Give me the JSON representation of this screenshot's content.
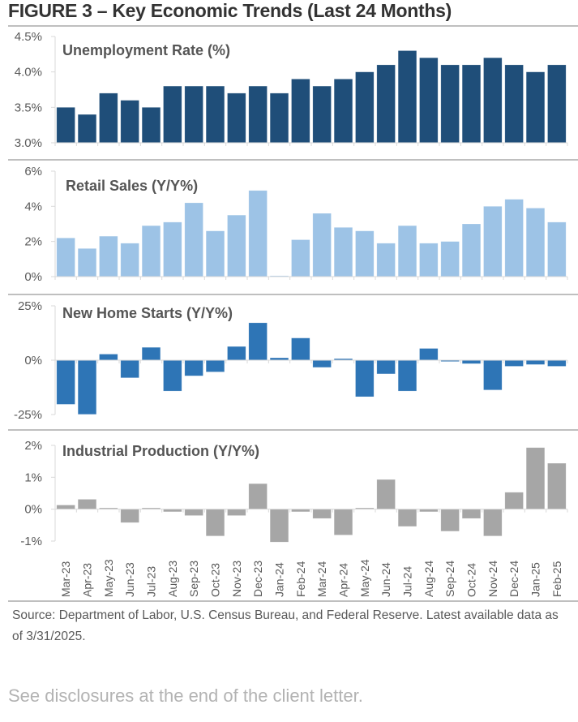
{
  "figure_title": "FIGURE 3 – Key Economic Trends (Last 24 Months)",
  "source_text": "Source: Department of Labor, U.S. Census Bureau, and Federal Reserve. Latest available data as of 3/31/2025.",
  "disclosure_text": "See disclosures at the end of the client letter.",
  "chart_data": [
    {
      "type": "bar",
      "title": "Unemployment Rate (%)",
      "color": "#1f4e79",
      "categories": [
        "Mar-23",
        "Apr-23",
        "May-23",
        "Jun-23",
        "Jul-23",
        "Aug-23",
        "Sep-23",
        "Oct-23",
        "Nov-23",
        "Dec-23",
        "Jan-24",
        "Feb-24",
        "Mar-24",
        "Apr-24",
        "May-24",
        "Jun-24",
        "Jul-24",
        "Aug-24",
        "Sep-24",
        "Oct-24",
        "Nov-24",
        "Dec-24",
        "Jan-25",
        "Feb-25"
      ],
      "values": [
        3.5,
        3.4,
        3.7,
        3.6,
        3.5,
        3.8,
        3.8,
        3.8,
        3.7,
        3.8,
        3.7,
        3.9,
        3.8,
        3.9,
        4.0,
        4.1,
        4.3,
        4.2,
        4.1,
        4.1,
        4.2,
        4.1,
        4.0,
        4.1
      ],
      "ylim": [
        3.0,
        4.5
      ],
      "baseline": 3.0,
      "yticks": [
        4.5,
        4.0,
        3.5,
        3.0
      ],
      "ytick_labels": [
        "4.5%",
        "4.0%",
        "3.5%",
        "3.0%"
      ],
      "xlabel": "",
      "ylabel": ""
    },
    {
      "type": "bar",
      "title": "Retail Sales (Y/Y%)",
      "color": "#9dc3e6",
      "categories": [
        "Mar-23",
        "Apr-23",
        "May-23",
        "Jun-23",
        "Jul-23",
        "Aug-23",
        "Sep-23",
        "Oct-23",
        "Nov-23",
        "Dec-23",
        "Jan-24",
        "Feb-24",
        "Mar-24",
        "Apr-24",
        "May-24",
        "Jun-24",
        "Jul-24",
        "Aug-24",
        "Sep-24",
        "Oct-24",
        "Nov-24",
        "Dec-24",
        "Jan-25",
        "Feb-25"
      ],
      "values": [
        2.2,
        1.6,
        2.3,
        1.9,
        2.9,
        3.1,
        4.2,
        2.6,
        3.5,
        4.9,
        0.05,
        2.1,
        3.6,
        2.8,
        2.6,
        1.9,
        2.9,
        1.9,
        2.0,
        3.0,
        4.0,
        4.4,
        3.9,
        3.1
      ],
      "ylim": [
        0,
        6
      ],
      "baseline": 0,
      "yticks": [
        6,
        4,
        2,
        0
      ],
      "ytick_labels": [
        "6%",
        "4%",
        "2%",
        "0%"
      ],
      "xlabel": "",
      "ylabel": ""
    },
    {
      "type": "bar",
      "title": "New Home Starts (Y/Y%)",
      "color": "#2e75b6",
      "categories": [
        "Mar-23",
        "Apr-23",
        "May-23",
        "Jun-23",
        "Jul-23",
        "Aug-23",
        "Sep-23",
        "Oct-23",
        "Nov-23",
        "Dec-23",
        "Jan-24",
        "Feb-24",
        "Mar-24",
        "Apr-24",
        "May-24",
        "Jun-24",
        "Jul-24",
        "Aug-24",
        "Sep-24",
        "Oct-24",
        "Nov-24",
        "Dec-24",
        "Jan-25",
        "Feb-25"
      ],
      "values": [
        -20.3,
        -24.9,
        2.8,
        -8.1,
        5.9,
        -14.2,
        -7.2,
        -5.4,
        6.3,
        17.2,
        1.1,
        10.2,
        -3.3,
        0.7,
        -16.8,
        -6.3,
        -14.2,
        5.4,
        -0.6,
        -1.6,
        -13.7,
        -2.8,
        -2.0,
        -2.8
      ],
      "ylim": [
        -25,
        25
      ],
      "baseline": 0,
      "yticks": [
        25,
        0,
        -25
      ],
      "ytick_labels": [
        "25%",
        "0%",
        "-25%"
      ],
      "xlabel": "",
      "ylabel": ""
    },
    {
      "type": "bar",
      "title": "Industrial Production (Y/Y%)",
      "color": "#a6a6a6",
      "categories": [
        "Mar-23",
        "Apr-23",
        "May-23",
        "Jun-23",
        "Jul-23",
        "Aug-23",
        "Sep-23",
        "Oct-23",
        "Nov-23",
        "Dec-23",
        "Jan-24",
        "Feb-24",
        "Mar-24",
        "Apr-24",
        "May-24",
        "Jun-24",
        "Jul-24",
        "Aug-24",
        "Sep-24",
        "Oct-24",
        "Nov-24",
        "Dec-24",
        "Jan-25",
        "Feb-25"
      ],
      "values": [
        0.13,
        0.31,
        0.04,
        -0.42,
        0.04,
        -0.08,
        -0.2,
        -0.84,
        -0.2,
        0.8,
        -1.03,
        -0.08,
        -0.29,
        -0.81,
        0.04,
        0.93,
        -0.54,
        -0.08,
        -0.69,
        -0.29,
        -0.84,
        0.53,
        1.93,
        1.44
      ],
      "ylim": [
        -1,
        2
      ],
      "baseline": 0,
      "yticks": [
        2,
        1,
        0,
        -1
      ],
      "ytick_labels": [
        "2%",
        "1%",
        "0%",
        "-1%"
      ],
      "xlabel": "",
      "ylabel": ""
    }
  ]
}
